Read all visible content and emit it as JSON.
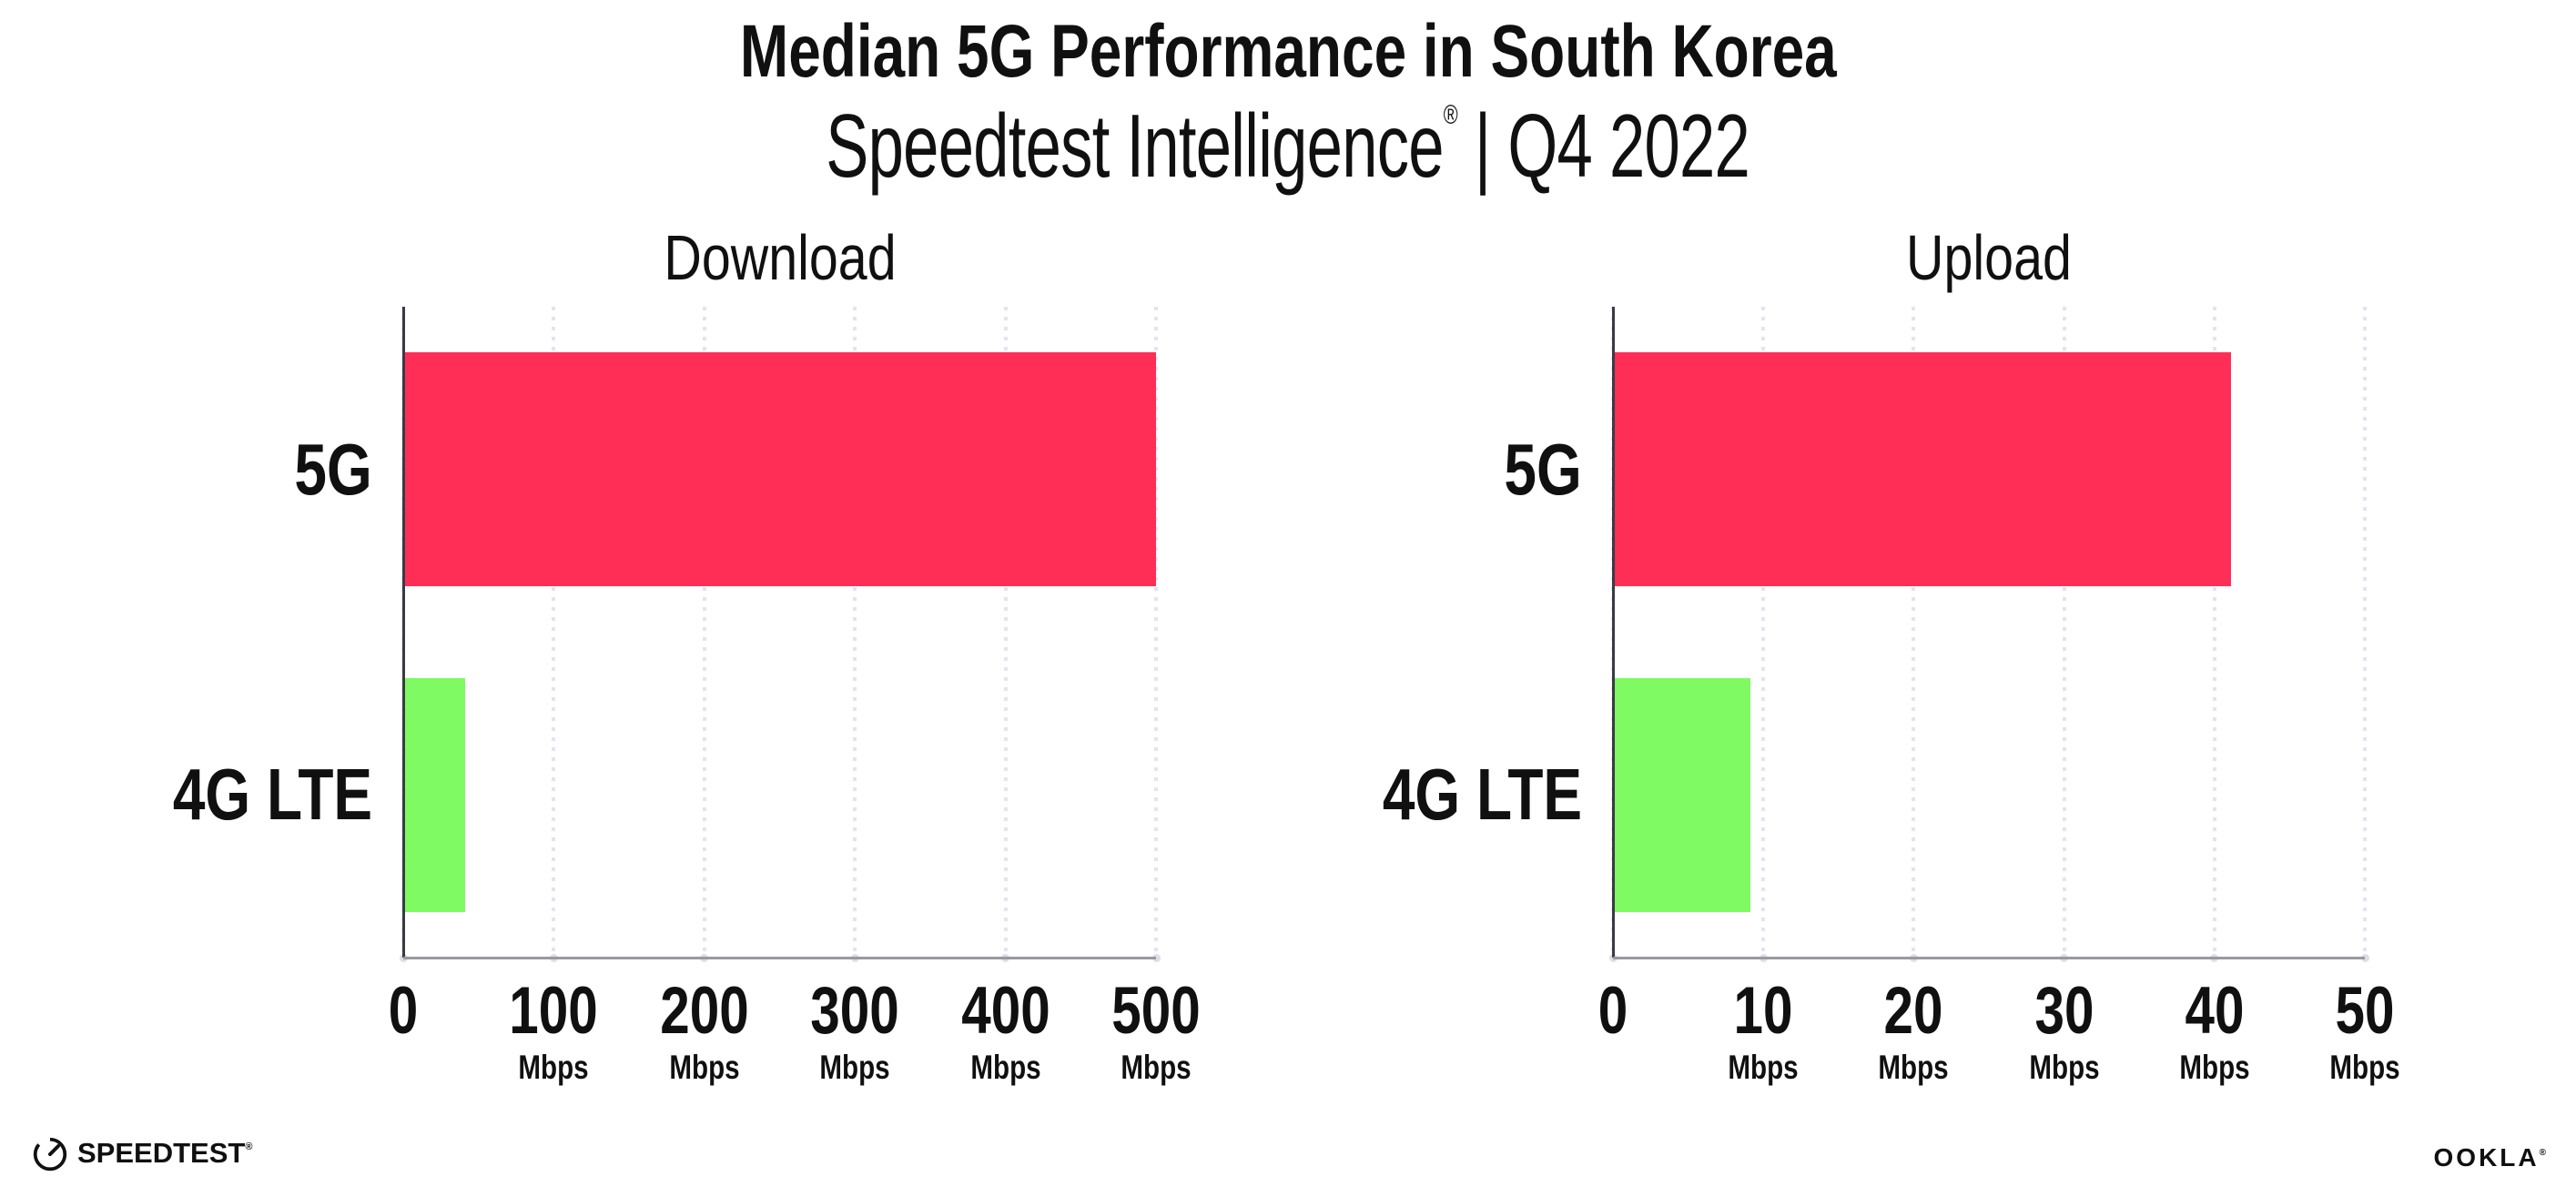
{
  "header": {
    "title": "Median 5G Performance in South Korea",
    "subtitle_brand": "Speedtest Intelligence",
    "subtitle_reg": "®",
    "subtitle_rest": " | Q4 2022"
  },
  "colors": {
    "bar_5g": "#FF2E56",
    "bar_4g": "#7FFA62",
    "gridline": "#E4E4EF",
    "tick_dot": "#DDDDE8",
    "spine_y": "#3A3A46",
    "baseline": "#99999F",
    "text": "#101010"
  },
  "chart_data": [
    {
      "type": "bar",
      "orientation": "horizontal",
      "title": "Download",
      "categories": [
        "5G",
        "4G LTE"
      ],
      "values": [
        499,
        40
      ],
      "unit": "Mbps",
      "xlim": [
        0,
        500
      ],
      "grid": "dotted-vertical",
      "ticks": [
        {
          "label": "0",
          "unit": ""
        },
        {
          "label": "100",
          "unit": "Mbps"
        },
        {
          "label": "200",
          "unit": "Mbps"
        },
        {
          "label": "300",
          "unit": "Mbps"
        },
        {
          "label": "400",
          "unit": "Mbps"
        },
        {
          "label": "500",
          "unit": "Mbps"
        }
      ]
    },
    {
      "type": "bar",
      "orientation": "horizontal",
      "title": "Upload",
      "categories": [
        "5G",
        "4G LTE"
      ],
      "values": [
        41,
        9
      ],
      "unit": "Mbps",
      "xlim": [
        0,
        50
      ],
      "grid": "dotted-vertical",
      "ticks": [
        {
          "label": "0",
          "unit": ""
        },
        {
          "label": "10",
          "unit": "Mbps"
        },
        {
          "label": "20",
          "unit": "Mbps"
        },
        {
          "label": "30",
          "unit": "Mbps"
        },
        {
          "label": "40",
          "unit": "Mbps"
        },
        {
          "label": "50",
          "unit": "Mbps"
        }
      ]
    }
  ],
  "footer": {
    "speedtest_label": "SPEEDTEST",
    "speedtest_mark": "®",
    "ookla_label": "OOKLA",
    "ookla_mark": "®"
  }
}
